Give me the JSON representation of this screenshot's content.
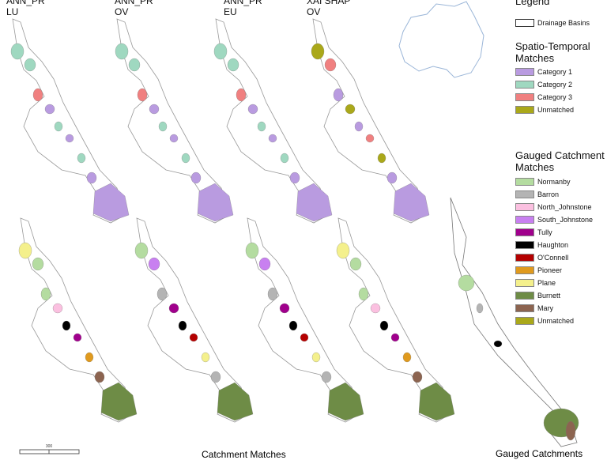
{
  "panels": [
    {
      "line1": "ANN_PR",
      "line2": "LU"
    },
    {
      "line1": "ANN_PR",
      "line2": "OV"
    },
    {
      "line1": "ANN_PR",
      "line2": "EU"
    },
    {
      "line1": "XAI SHAP",
      "line2": "OV"
    }
  ],
  "legend": {
    "title": "Legend",
    "drainage": "Drainage Basins",
    "spatio_title": "Spatio-Temporal Matches",
    "spatio_items": [
      {
        "label": "Category 1",
        "color": "#b99be0"
      },
      {
        "label": "Category 2",
        "color": "#9fd8c0"
      },
      {
        "label": "Category 3",
        "color": "#f08080"
      },
      {
        "label": "Unmatched",
        "color": "#aaa81a"
      }
    ],
    "gauged_title": "Gauged Catchment Matches",
    "gauged_items": [
      {
        "label": "Normanby",
        "color": "#b4dca0"
      },
      {
        "label": "Barron",
        "color": "#b4b4b4"
      },
      {
        "label": "North_Johnstone",
        "color": "#fbc0e0"
      },
      {
        "label": "South_Johnstone",
        "color": "#c880f0"
      },
      {
        "label": "Tully",
        "color": "#a0008c"
      },
      {
        "label": "Haughton",
        "color": "#000000"
      },
      {
        "label": "O'Connell",
        "color": "#b40000"
      },
      {
        "label": "Pioneer",
        "color": "#e09a1e"
      },
      {
        "label": "Plane",
        "color": "#f4f08c"
      },
      {
        "label": "Burnett",
        "color": "#6e8c46"
      },
      {
        "label": "Mary",
        "color": "#8c6450"
      },
      {
        "label": "Unmatched",
        "color": "#aaa81a"
      }
    ]
  },
  "captions": {
    "bottom_center": "Catchment Matches",
    "bottom_right": "Gauged Catchments"
  },
  "scale_label": "300"
}
